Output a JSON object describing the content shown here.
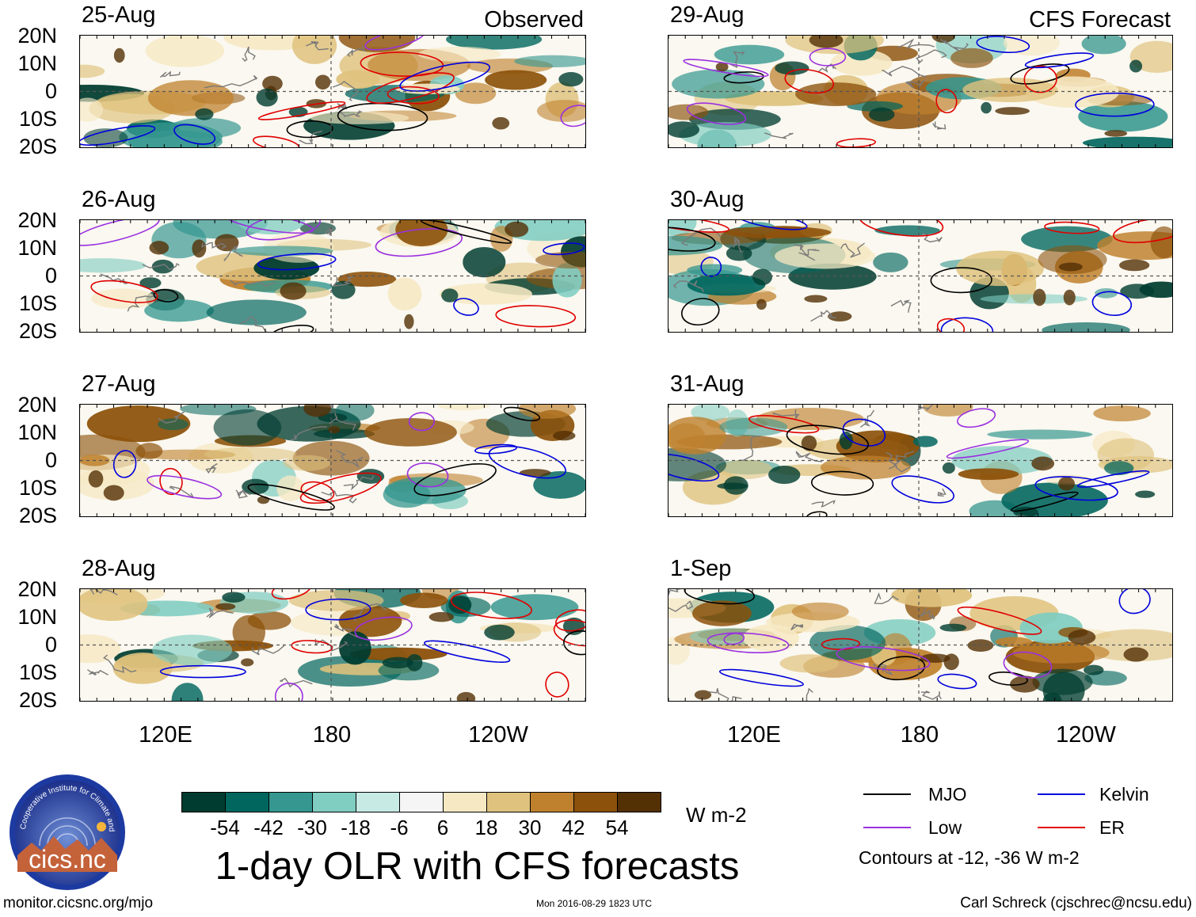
{
  "columns": {
    "observed_title": "Observed",
    "forecast_title": "CFS Forecast"
  },
  "panels": {
    "observed": [
      {
        "date": "25-Aug"
      },
      {
        "date": "26-Aug"
      },
      {
        "date": "27-Aug"
      },
      {
        "date": "28-Aug"
      }
    ],
    "forecast": [
      {
        "date": "29-Aug"
      },
      {
        "date": "30-Aug"
      },
      {
        "date": "31-Aug"
      },
      {
        "date": "1-Sep"
      }
    ]
  },
  "lat_labels": [
    "20N",
    "10N",
    "0",
    "10S",
    "20S"
  ],
  "lon_labels": [
    "120E",
    "180",
    "120W"
  ],
  "colorbar": {
    "units": "W m-2",
    "tick_labels": [
      "-54",
      "-42",
      "-30",
      "-18",
      "-6",
      "6",
      "18",
      "30",
      "42",
      "54"
    ],
    "colors": [
      "#003c30",
      "#01665e",
      "#35978f",
      "#80cdc1",
      "#c7eae5",
      "#f5f5f5",
      "#f6e8c3",
      "#dfc27d",
      "#bf812d",
      "#8c510a",
      "#543005"
    ]
  },
  "main_title": "1-day OLR with CFS forecasts",
  "legend": {
    "items": [
      {
        "label": "MJO",
        "color": "#000000"
      },
      {
        "label": "Kelvin",
        "color": "#0000dd"
      },
      {
        "label": "Low",
        "color": "#9b30e0"
      },
      {
        "label": "ER",
        "color": "#e00000"
      }
    ],
    "note": "Contours at -12, -36 W m-2"
  },
  "logo": {
    "text": "cics.nc",
    "ring_text": "Cooperative Institute for Climate and Satellites"
  },
  "footer": {
    "url": "monitor.cicsnc.org/mjo",
    "timestamp": "Mon 2016-08-29 1823 UTC",
    "credit": "Carl Schreck (cjschrec@ncsu.edu)"
  }
}
